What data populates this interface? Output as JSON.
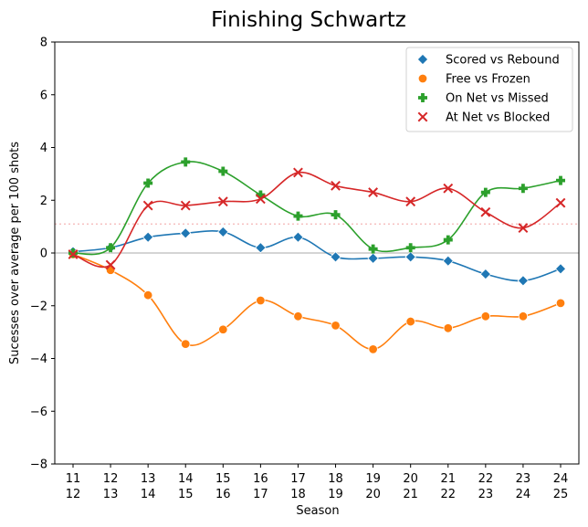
{
  "chart_data": {
    "type": "line",
    "title": "Finishing Schwartz",
    "xlabel": "Season",
    "ylabel": "Sucesses over average per 100 shots",
    "ylim": [
      -8,
      8
    ],
    "yticks": [
      -8,
      -6,
      -4,
      -2,
      0,
      2,
      4,
      6,
      8
    ],
    "ytick_labels": [
      "−8",
      "−6",
      "−4",
      "−2",
      "0",
      "2",
      "4",
      "6",
      "8"
    ],
    "categories": [
      [
        "11",
        "12"
      ],
      [
        "12",
        "13"
      ],
      [
        "13",
        "14"
      ],
      [
        "14",
        "15"
      ],
      [
        "15",
        "16"
      ],
      [
        "16",
        "17"
      ],
      [
        "17",
        "18"
      ],
      [
        "18",
        "19"
      ],
      [
        "19",
        "20"
      ],
      [
        "20",
        "21"
      ],
      [
        "21",
        "22"
      ],
      [
        "22",
        "23"
      ],
      [
        "23",
        "24"
      ],
      [
        "24",
        "25"
      ]
    ],
    "reference_lines": [
      {
        "value": 0,
        "color": "#bbbbbb",
        "style": "solid"
      },
      {
        "value": 1.1,
        "color": "#f5b5b5",
        "style": "dotted"
      }
    ],
    "legend_position": "top-right",
    "series": [
      {
        "name": "Scored vs Rebound",
        "color": "#1f77b4",
        "marker": "diamond",
        "values": [
          0.05,
          0.2,
          0.6,
          0.75,
          0.8,
          0.2,
          0.6,
          -0.15,
          -0.2,
          -0.15,
          -0.3,
          -0.8,
          -1.05,
          -0.6
        ]
      },
      {
        "name": "Free vs Frozen",
        "color": "#ff7f0e",
        "marker": "circle",
        "values": [
          -0.05,
          -0.65,
          -1.6,
          -3.45,
          -2.9,
          -1.8,
          -2.4,
          -2.75,
          -3.65,
          -2.6,
          -2.85,
          -2.4,
          -2.4,
          -1.9
        ]
      },
      {
        "name": "On Net vs Missed",
        "color": "#2ca02c",
        "marker": "plus",
        "values": [
          0.0,
          0.2,
          2.65,
          3.45,
          3.1,
          2.2,
          1.4,
          1.45,
          0.15,
          0.2,
          0.5,
          2.3,
          2.45,
          2.75
        ]
      },
      {
        "name": "At Net vs Blocked",
        "color": "#d62728",
        "marker": "x",
        "values": [
          -0.05,
          -0.45,
          1.8,
          1.8,
          1.95,
          2.05,
          3.05,
          2.55,
          2.3,
          1.95,
          2.45,
          1.55,
          0.95,
          1.9
        ]
      }
    ]
  }
}
